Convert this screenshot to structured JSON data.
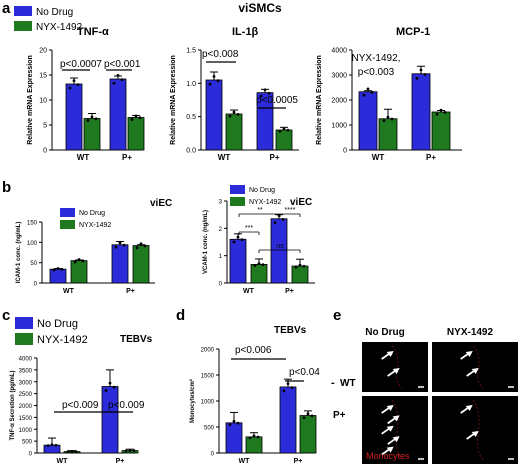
{
  "figure": {
    "palette": {
      "blue": "#2b2bd9",
      "green": "#1f7a1f",
      "dark": "#000000"
    },
    "panel_letters": [
      "a",
      "b",
      "c",
      "d",
      "e"
    ],
    "panel_a": {
      "group_title": "viSMCs",
      "legend": [
        "No Drug",
        "NYX-1492"
      ]
    },
    "panel_e": {
      "col_labels": [
        "No Drug",
        "NYX-1492"
      ],
      "row_labels": [
        "WT",
        "P+"
      ],
      "row_dash": "-",
      "overlay_label": "Monocytes",
      "arrow_counts": [
        [
          2,
          2
        ],
        [
          5,
          2
        ]
      ]
    }
  },
  "chart_data": [
    {
      "type": "bar",
      "id": "a1",
      "title": "TNF-α",
      "ylabel": "Relative mRNA Expression",
      "categories": [
        "WT",
        "P+"
      ],
      "ylim": [
        0,
        20
      ],
      "yticks": [
        0,
        5,
        10,
        15,
        20
      ],
      "series": [
        {
          "name": "No Drug",
          "values": [
            13.2,
            14.2
          ],
          "err": [
            1.2,
            0.6
          ]
        },
        {
          "name": "NYX-1492",
          "values": [
            6.3,
            6.5
          ],
          "err": [
            1.0,
            0.4
          ]
        }
      ],
      "annotations": [
        "p<0.0007",
        "p<0.001"
      ]
    },
    {
      "type": "bar",
      "id": "a2",
      "title": "IL-1β",
      "ylabel": "Relative mRNA Expression",
      "categories": [
        "WT",
        "P+"
      ],
      "ylim": [
        0,
        1.5
      ],
      "yticks": [
        0.0,
        0.5,
        1.0,
        1.5
      ],
      "series": [
        {
          "name": "No Drug",
          "values": [
            1.05,
            0.86
          ],
          "err": [
            0.12,
            0.05
          ]
        },
        {
          "name": "NYX-1492",
          "values": [
            0.54,
            0.3
          ],
          "err": [
            0.06,
            0.04
          ]
        }
      ],
      "annotations": [
        "p<0.008",
        "p<0.0005"
      ]
    },
    {
      "type": "bar",
      "id": "a3",
      "title": "MCP-1",
      "ylabel": "Relative mRNA Expression",
      "categories": [
        "WT",
        "P+"
      ],
      "ylim": [
        0,
        4000
      ],
      "yticks": [
        0,
        1000,
        2000,
        3000,
        4000
      ],
      "series": [
        {
          "name": "No Drug",
          "values": [
            2330,
            3050
          ],
          "err": [
            40,
            300
          ]
        },
        {
          "name": "NYX-1492",
          "values": [
            1250,
            1520
          ],
          "err": [
            380,
            60
          ]
        }
      ],
      "annotations": [
        "NYX-1492,",
        "p<0.003"
      ]
    },
    {
      "type": "bar",
      "id": "b1",
      "title": "viEC",
      "ylabel": "ICAM-1 conc. (ng/mL)",
      "categories": [
        "WT",
        "P+"
      ],
      "ylim": [
        0,
        150
      ],
      "yticks": [
        0,
        50,
        100,
        150
      ],
      "series": [
        {
          "name": "No Drug",
          "values": [
            34,
            94
          ],
          "err": [
            1.5,
            8
          ]
        },
        {
          "name": "NYX-1492",
          "values": [
            55,
            92
          ],
          "err": [
            1.5,
            2
          ]
        }
      ],
      "legend": [
        "No Drug",
        "NYX-1492"
      ]
    },
    {
      "type": "bar",
      "id": "b2",
      "title": "viEC",
      "ylabel": "VCAM-1 conc. (ng/mL)",
      "categories": [
        "WT",
        "P+"
      ],
      "ylim": [
        0,
        3
      ],
      "yticks": [
        0,
        1,
        2,
        3
      ],
      "series": [
        {
          "name": "No Drug",
          "values": [
            1.6,
            2.35
          ],
          "err": [
            0.2,
            0.15
          ]
        },
        {
          "name": "NYX-1492",
          "values": [
            0.68,
            0.62
          ],
          "err": [
            0.2,
            0.25
          ]
        }
      ],
      "legend": [
        "No Drug",
        "NYX-1492"
      ],
      "annotations": [
        "***",
        "**",
        "****",
        "ns"
      ]
    },
    {
      "type": "bar",
      "id": "c",
      "title": "TEBVs",
      "ylabel": "TNF-α Secretion (pg/mL)",
      "categories": [
        "WT",
        "P+"
      ],
      "ylim": [
        0,
        4000
      ],
      "yticks": [
        0,
        500,
        1000,
        1500,
        2000,
        2500,
        3000,
        3500,
        4000
      ],
      "series": [
        {
          "name": "No Drug",
          "values": [
            330,
            2800
          ],
          "err": [
            300,
            700
          ]
        },
        {
          "name": "NYX-1492",
          "values": [
            60,
            100
          ],
          "err": [
            40,
            60
          ]
        }
      ],
      "legend": [
        "No Drug",
        "NYX-1492"
      ],
      "annotations": [
        "p<0.009",
        "p<0.009"
      ]
    },
    {
      "type": "bar",
      "id": "d",
      "title": "TEBVs",
      "ylabel": "Monocytes/cm²",
      "categories": [
        "WT",
        "P+"
      ],
      "ylim": [
        0,
        2000
      ],
      "yticks": [
        0,
        500,
        1000,
        1500,
        2000
      ],
      "series": [
        {
          "name": "No Drug",
          "values": [
            580,
            1270
          ],
          "err": [
            200,
            150
          ]
        },
        {
          "name": "NYX-1492",
          "values": [
            310,
            720
          ],
          "err": [
            80,
            90
          ]
        }
      ],
      "annotations": [
        "p<0.006",
        "p<0.04"
      ]
    }
  ]
}
